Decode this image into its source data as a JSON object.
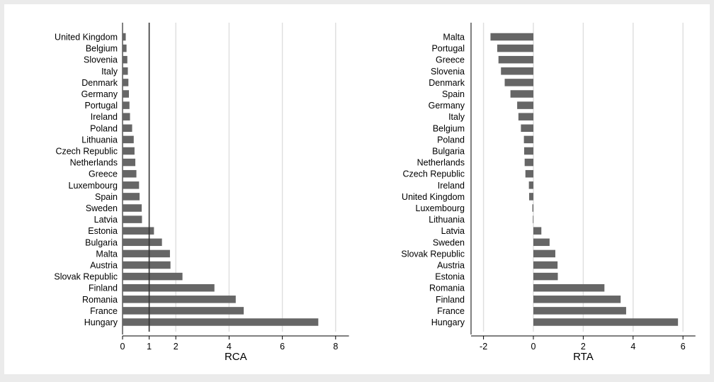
{
  "colors": {
    "background": "#ebebeb",
    "plot_bg": "#ffffff",
    "bar": "#666666",
    "grid": "#dedede",
    "reference_line": "#333333"
  },
  "chart_data": [
    {
      "type": "bar",
      "orientation": "horizontal",
      "xlabel": "RCA",
      "xlim": [
        0,
        8.5
      ],
      "xticks": [
        0,
        1,
        2,
        4,
        6,
        8
      ],
      "reference_line": 1,
      "grid": true,
      "categories": [
        "United Kingdom",
        "Belgium",
        "Slovenia",
        "Italy",
        "Denmark",
        "Germany",
        "Portugal",
        "Ireland",
        "Poland",
        "Lithuania",
        "Czech Republic",
        "Netherlands",
        "Greece",
        "Luxembourg",
        "Spain",
        "Sweden",
        "Latvia",
        "Estonia",
        "Bulgaria",
        "Malta",
        "Austria",
        "Slovak Republic",
        "Finland",
        "Romania",
        "France",
        "Hungary"
      ],
      "values": [
        0.12,
        0.15,
        0.18,
        0.2,
        0.22,
        0.24,
        0.26,
        0.28,
        0.36,
        0.42,
        0.45,
        0.48,
        0.52,
        0.62,
        0.64,
        0.72,
        0.73,
        1.18,
        1.48,
        1.78,
        1.8,
        2.25,
        3.45,
        4.25,
        4.55,
        7.35
      ]
    },
    {
      "type": "bar",
      "orientation": "horizontal",
      "xlabel": "RTA",
      "xlim": [
        -2.5,
        6.5
      ],
      "xticks": [
        -2,
        0,
        2,
        4,
        6
      ],
      "grid": true,
      "categories": [
        "Malta",
        "Portugal",
        "Greece",
        "Slovenia",
        "Denmark",
        "Spain",
        "Germany",
        "Italy",
        "Belgium",
        "Poland",
        "Bulgaria",
        "Netherlands",
        "Czech Republic",
        "Ireland",
        "United Kingdom",
        "Luxembourg",
        "Lithuania",
        "Latvia",
        "Sweden",
        "Slovak Republic",
        "Austria",
        "Estonia",
        "Romania",
        "Finland",
        "France",
        "Hungary"
      ],
      "values": [
        -1.72,
        -1.45,
        -1.4,
        -1.3,
        -1.15,
        -0.92,
        -0.65,
        -0.6,
        -0.5,
        -0.38,
        -0.37,
        -0.35,
        -0.32,
        -0.18,
        -0.17,
        -0.04,
        -0.02,
        0.32,
        0.65,
        0.88,
        0.97,
        0.98,
        2.85,
        3.5,
        3.72,
        5.8
      ]
    }
  ]
}
